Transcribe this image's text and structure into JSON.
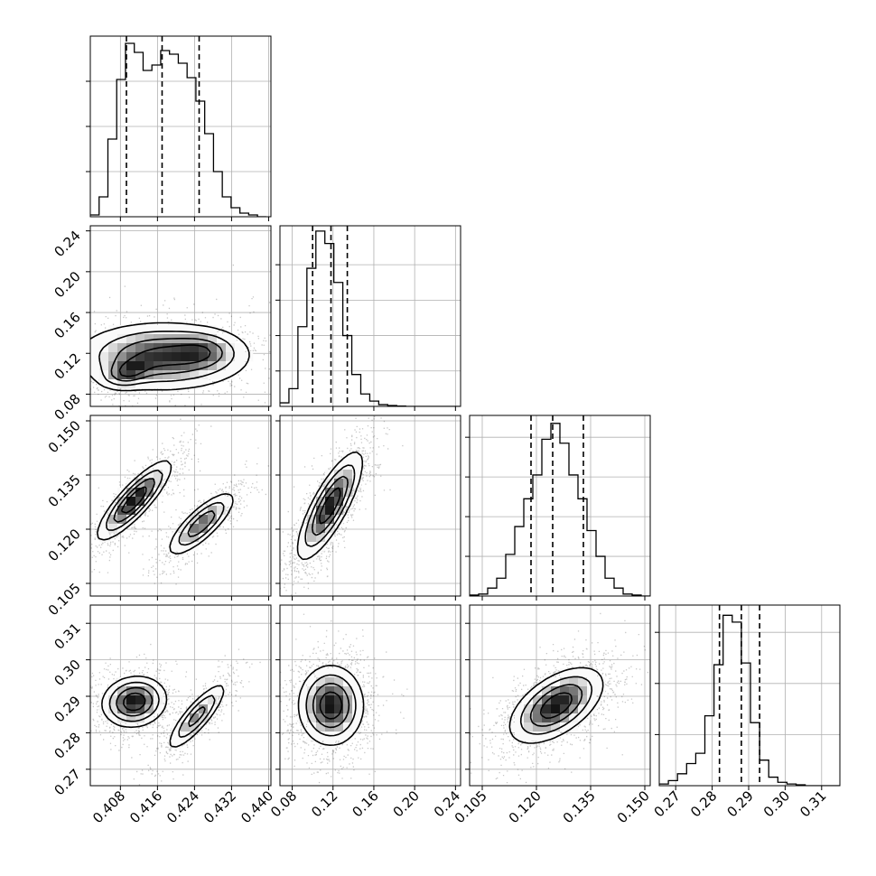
{
  "chart_data": {
    "type": "corner",
    "parameters": [
      {
        "range": [
          0.4015,
          0.4405
        ],
        "ticks": [
          "0.408",
          "0.416",
          "0.424",
          "0.432",
          "0.440"
        ],
        "tick_values": [
          0.408,
          0.416,
          0.424,
          0.432,
          0.44
        ]
      },
      {
        "range": [
          0.068,
          0.245
        ],
        "ticks": [
          "0.08",
          "0.12",
          "0.16",
          "0.20",
          "0.24"
        ],
        "tick_values": [
          0.08,
          0.12,
          0.16,
          0.2,
          0.24
        ]
      },
      {
        "range": [
          0.1015,
          0.1515
        ],
        "ticks": [
          "0.105",
          "0.120",
          "0.135",
          "0.150"
        ],
        "tick_values": [
          0.105,
          0.12,
          0.135,
          0.15
        ]
      },
      {
        "range": [
          0.2655,
          0.315
        ],
        "ticks": [
          "0.27",
          "0.28",
          "0.29",
          "0.30",
          "0.31"
        ],
        "tick_values": [
          0.27,
          0.28,
          0.29,
          0.3,
          0.31
        ]
      }
    ],
    "histograms": [
      {
        "bins_edges_start": 0.4015,
        "bin_width": 0.0019,
        "counts": [
          1,
          11,
          43,
          76,
          96,
          91,
          81,
          84,
          92,
          90,
          85,
          77,
          64,
          46,
          25,
          11,
          5,
          2,
          1,
          0
        ],
        "ymax": 100,
        "yticks": [
          25,
          50,
          75
        ],
        "quantiles": [
          0.4093,
          0.417,
          0.425
        ]
      },
      {
        "bins_edges_start": 0.068,
        "bin_width": 0.0088,
        "counts": [
          2,
          10,
          45,
          78,
          99,
          92,
          70,
          40,
          18,
          7,
          3,
          1,
          0.5,
          0.2,
          0,
          0,
          0,
          0,
          0,
          0
        ],
        "ymax": 102,
        "yticks": [
          20,
          40,
          60,
          80
        ],
        "quantiles": [
          0.1,
          0.118,
          0.134
        ]
      },
      {
        "bins_edges_start": 0.1015,
        "bin_width": 0.0025,
        "counts": [
          0.5,
          1,
          4,
          9,
          21,
          35,
          49,
          61,
          79,
          87,
          77,
          61,
          49,
          33,
          20,
          9,
          4,
          1,
          0.5,
          0
        ],
        "ymax": 91,
        "yticks": [
          20,
          40,
          60,
          80
        ],
        "quantiles": [
          0.1185,
          0.1245,
          0.133
        ]
      },
      {
        "bins_edges_start": 0.2655,
        "bin_width": 0.0025,
        "counts": [
          1,
          3,
          7,
          13,
          19,
          41,
          71,
          100,
          96,
          72,
          37,
          15,
          5,
          2,
          1,
          0.5,
          0,
          0,
          0,
          0
        ],
        "ymax": 106,
        "yticks": [
          30,
          60,
          90
        ],
        "quantiles": [
          0.282,
          0.288,
          0.293
        ]
      }
    ],
    "joint": [
      {
        "x": 0,
        "y": 1,
        "modes": [
          {
            "cx": 0.417,
            "cy": 0.117,
            "sx": 0.0095,
            "sy": 0.017,
            "rho": 0.0,
            "w": 1.0
          },
          {
            "cx": 0.4095,
            "cy": 0.101,
            "sx": 0.003,
            "sy": 0.008,
            "rho": 0.3,
            "w": 0.6
          },
          {
            "cx": 0.426,
            "cy": 0.122,
            "sx": 0.004,
            "sy": 0.01,
            "rho": 0.0,
            "w": 0.4
          }
        ]
      },
      {
        "x": 0,
        "y": 2,
        "modes": [
          {
            "cx": 0.411,
            "cy": 0.128,
            "sx": 0.004,
            "sy": 0.0055,
            "rho": 0.85,
            "w": 1.0
          },
          {
            "cx": 0.4255,
            "cy": 0.1215,
            "sx": 0.0037,
            "sy": 0.0045,
            "rho": 0.8,
            "w": 0.75
          }
        ]
      },
      {
        "x": 0,
        "y": 3,
        "modes": [
          {
            "cx": 0.411,
            "cy": 0.2885,
            "sx": 0.0035,
            "sy": 0.0035,
            "rho": 0.1,
            "w": 1.0
          },
          {
            "cx": 0.4245,
            "cy": 0.2845,
            "sx": 0.0033,
            "sy": 0.0048,
            "rho": 0.85,
            "w": 0.65
          }
        ]
      },
      {
        "x": 1,
        "y": 2,
        "modes": [
          {
            "cx": 0.117,
            "cy": 0.1265,
            "sx": 0.016,
            "sy": 0.0075,
            "rho": 0.8,
            "w": 1.0
          }
        ]
      },
      {
        "x": 1,
        "y": 3,
        "modes": [
          {
            "cx": 0.118,
            "cy": 0.2875,
            "sx": 0.016,
            "sy": 0.0055,
            "rho": 0.0,
            "w": 1.0
          }
        ]
      },
      {
        "x": 2,
        "y": 3,
        "modes": [
          {
            "cx": 0.1255,
            "cy": 0.2875,
            "sx": 0.0065,
            "sy": 0.0052,
            "rho": 0.55,
            "w": 1.0
          }
        ]
      }
    ],
    "colors": {
      "line": "#000000",
      "grid": "#b0b0b0",
      "points": "#000000",
      "density": "#000000"
    }
  }
}
